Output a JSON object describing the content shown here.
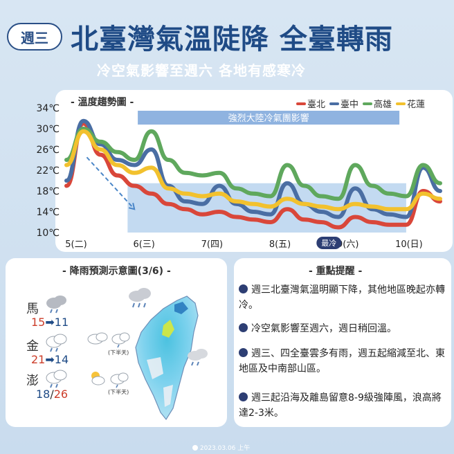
{
  "header": {
    "day_badge": "週三",
    "title": "北臺灣氣溫陡降 全臺轉雨",
    "subtitle": "冷空氣影響至週六 各地有感寒冷"
  },
  "chart_panel": {
    "title": "- 溫度趨勢圖 -",
    "banner": "強烈大陸冷氣團影響",
    "min_label": "最冷"
  },
  "chart_data": {
    "type": "line",
    "title": "溫度趨勢圖",
    "y_unit": "℃",
    "y_ticks": [
      "34℃",
      "30℃",
      "26℃",
      "22℃",
      "18℃",
      "14℃",
      "10℃"
    ],
    "ylim": [
      10,
      34
    ],
    "x_ticks": [
      "5(二)",
      "6(三)",
      "7(四)",
      "8(五)",
      "9(六)",
      "10(日)"
    ],
    "x": [
      5.0,
      5.25,
      5.5,
      5.75,
      6.0,
      6.25,
      6.5,
      6.75,
      7.0,
      7.25,
      7.5,
      7.75,
      8.0,
      8.25,
      8.5,
      8.75,
      9.0,
      9.25,
      9.5,
      9.75,
      10.0,
      10.25,
      10.5
    ],
    "series": [
      {
        "name": "臺北",
        "color": "#d9473a",
        "values": [
          19,
          31,
          25,
          21,
          19,
          17.5,
          15.5,
          14.5,
          13.5,
          14,
          13,
          12.5,
          12,
          14.5,
          12.5,
          12,
          11,
          13,
          12,
          11.5,
          11.5,
          18,
          16
        ]
      },
      {
        "name": "臺中",
        "color": "#4a6ea3",
        "values": [
          20,
          31.5,
          27,
          24,
          23,
          26,
          19,
          16,
          15.5,
          19,
          15.5,
          14,
          13.5,
          19.5,
          15.5,
          14,
          13,
          18.5,
          14.5,
          13.5,
          13,
          22.5,
          18
        ]
      },
      {
        "name": "高雄",
        "color": "#5fa85d",
        "values": [
          24,
          30,
          27.5,
          25.5,
          24,
          29.5,
          24,
          21.5,
          21,
          21.5,
          18.5,
          17.5,
          17,
          23,
          19,
          17,
          16.5,
          23,
          19,
          17.5,
          17,
          23,
          19.5
        ]
      },
      {
        "name": "花蓮",
        "color": "#f2c12e",
        "values": [
          23,
          29.5,
          26,
          23,
          21.5,
          22.5,
          18.5,
          17.5,
          17,
          17.5,
          16,
          15.5,
          15,
          16.5,
          15.5,
          15,
          14.5,
          15.5,
          15,
          14.5,
          14.5,
          17.5,
          16.5
        ]
      }
    ],
    "grid": false,
    "legend_position": "top-right"
  },
  "rain_panel": {
    "title": "- 降雨預測示意圖(3/6) -",
    "afternoon_label": "(下半天)",
    "islands": [
      {
        "name": "馬",
        "hi": "15",
        "lo": "11"
      },
      {
        "name": "金",
        "hi": "21",
        "lo": "14"
      },
      {
        "name": "澎",
        "hi": "18",
        "lo": "26"
      }
    ]
  },
  "tips_panel": {
    "title": "- 重點提醒 -",
    "items": [
      "週三北臺灣氣溫明顯下降，其他地區晚起亦轉冷。",
      "冷空氣影響至週六，週日稍回溫。",
      "週三、四全臺雲多有雨，週五起縮減至北、東地區及中南部山區。",
      "週三起沿海及離島留意8-9級強陣風，浪高將達2-3米。"
    ]
  },
  "footer": {
    "date": "2023.03.06 上午"
  },
  "colors": {
    "accent": "#1f4b86",
    "cold_band": "#b8d3ee",
    "banner": "#8fb3e0"
  }
}
